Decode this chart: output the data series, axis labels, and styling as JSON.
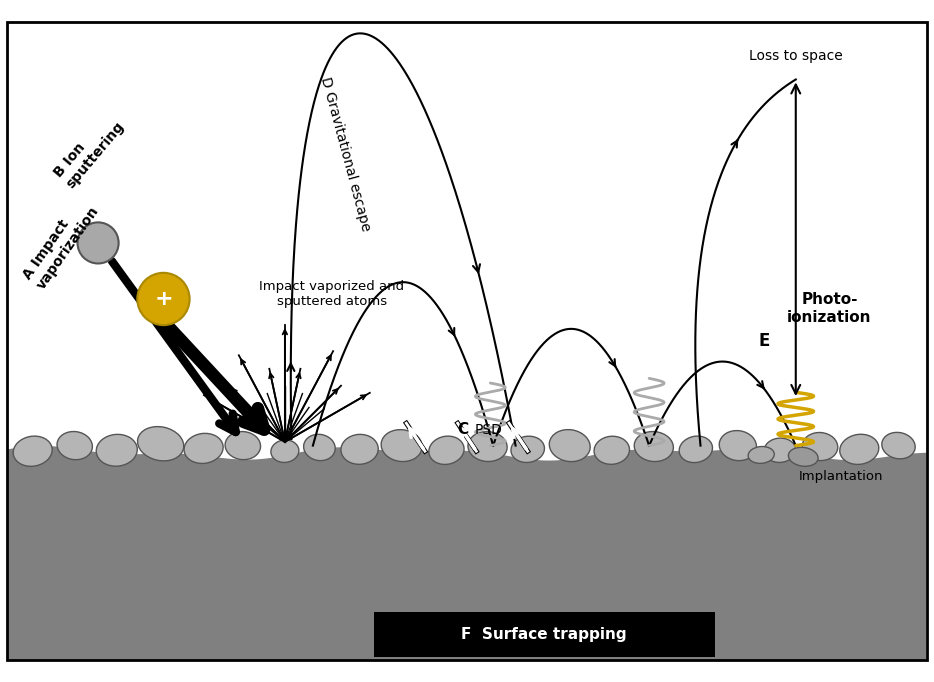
{
  "background_color": "#ffffff",
  "border_color": "#000000",
  "ground_color": "#888888",
  "rock_color_light": "#b8b8b8",
  "rock_color_dark": "#999999",
  "rock_edge": "#444444",
  "gold_color": "#D4A500",
  "gray_spring_color": "#aaaaaa",
  "text_A": "A Impact\nvaporization",
  "text_B": "B Ion\nsputtering",
  "text_C": "C",
  "text_PSD": "PSD",
  "text_D": "D Gravitational escape",
  "text_E": "E",
  "text_photo": "Photo-\nionization",
  "text_F": "F  Surface trapping",
  "text_impact": "Impact vaporized and\nsputtered atoms",
  "text_loss": "Loss to space",
  "text_implant": "Implantation"
}
